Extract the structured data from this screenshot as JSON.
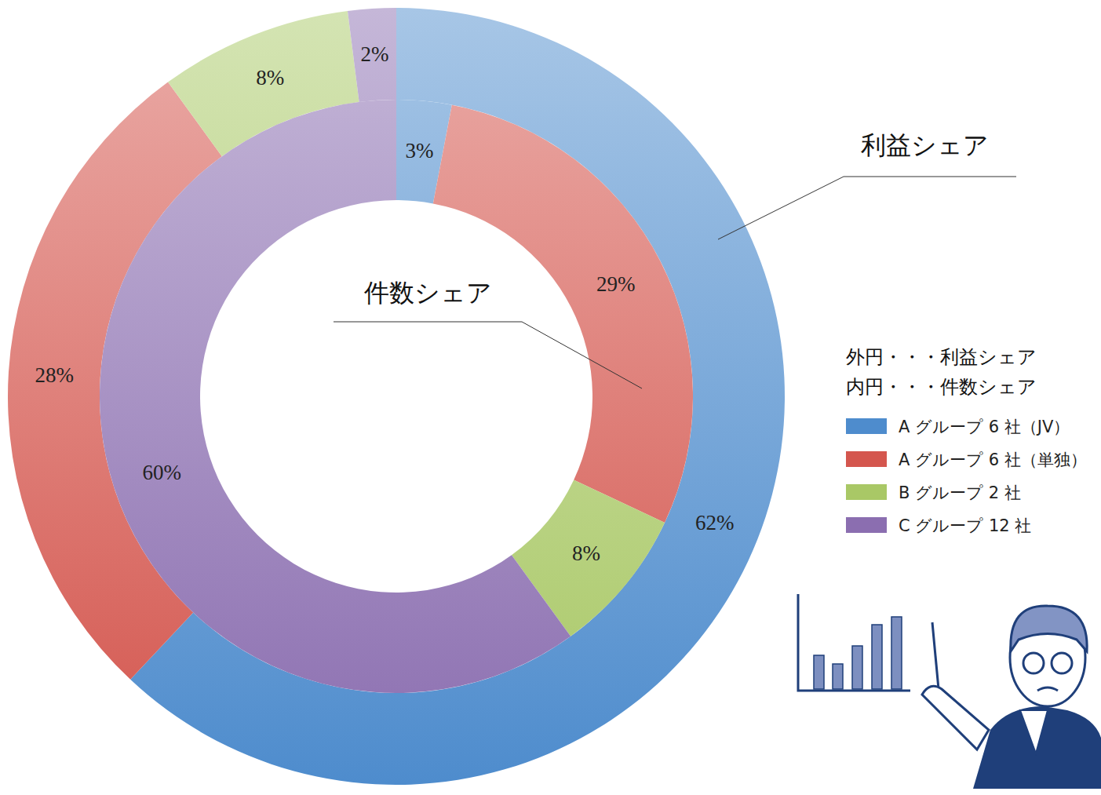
{
  "chart_data": {
    "type": "doughnut",
    "categories": [
      "A グループ 6 社（JV）",
      "A グループ 6 社（単独）",
      "B グループ 2 社",
      "C グループ 12 社"
    ],
    "colors": [
      "#4e8ccd",
      "#d4564e",
      "#a9c866",
      "#8b6eb0"
    ],
    "series": [
      {
        "name": "利益シェア",
        "values": [
          62,
          28,
          8,
          2
        ],
        "value_labels": [
          "62%",
          "28%",
          "8%",
          "2%"
        ]
      },
      {
        "name": "件数シェア",
        "values": [
          3,
          29,
          8,
          60
        ],
        "value_labels": [
          "3%",
          "29%",
          "8%",
          "60%"
        ]
      }
    ],
    "annotations": [
      "外円・・・利益シェア",
      "内円・・・件数シェア"
    ],
    "data_labels": true,
    "legend": "right"
  }
}
